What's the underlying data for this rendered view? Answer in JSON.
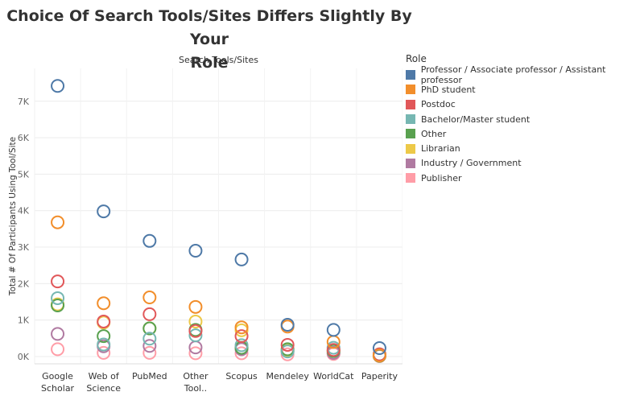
{
  "title_line1": "Choice Of Search Tools/Sites Differs Slightly By Your",
  "title_line2": "Role",
  "legend_title": "Role",
  "chart_data": {
    "type": "scatter",
    "title": "Choice Of Search Tools/Sites Differs Slightly By Your Role",
    "xlabel": "Search Tools/Sites",
    "ylabel": "Total # Of Participants Using Tool/Site",
    "ylim": [
      -200,
      7900
    ],
    "yticks": [
      0,
      1000,
      2000,
      3000,
      4000,
      5000,
      6000,
      7000
    ],
    "ytick_labels": [
      "0K",
      "1K",
      "2K",
      "3K",
      "4K",
      "5K",
      "6K",
      "7K"
    ],
    "categories": [
      "Google Scholar",
      "Web of Science",
      "PubMed",
      "Other Tool..",
      "Scopus",
      "Mendeley",
      "WorldCat",
      "Paperity"
    ],
    "category_lines": [
      [
        "Google",
        "Scholar"
      ],
      [
        "Web of",
        "Science"
      ],
      [
        "PubMed"
      ],
      [
        "Other",
        "Tool.."
      ],
      [
        "Scopus"
      ],
      [
        "Mendeley"
      ],
      [
        "WorldCat"
      ],
      [
        "Paperity"
      ]
    ],
    "grid": true,
    "marker": "open-circle",
    "legend_position": "right",
    "series": [
      {
        "name": "Professor / Associate professor / Assistant professor",
        "color": "#4e79a7",
        "values": [
          7420,
          3980,
          3170,
          2900,
          2660,
          870,
          730,
          230
        ]
      },
      {
        "name": "PhD student",
        "color": "#f28e2b",
        "values": [
          3680,
          1460,
          1620,
          1360,
          800,
          820,
          400,
          30
        ]
      },
      {
        "name": "Postdoc",
        "color": "#e15759",
        "values": [
          2060,
          960,
          1160,
          700,
          560,
          320,
          180,
          60
        ]
      },
      {
        "name": "Bachelor/Master student",
        "color": "#76b7b2",
        "values": [
          1600,
          330,
          490,
          580,
          310,
          140,
          240,
          60
        ]
      },
      {
        "name": "Other",
        "color": "#59a14f",
        "values": [
          1400,
          560,
          770,
          730,
          240,
          200,
          150,
          20
        ]
      },
      {
        "name": "Librarian",
        "color": "#edc948",
        "values": [
          1430,
          930,
          770,
          960,
          720,
          160,
          160,
          20
        ]
      },
      {
        "name": "Industry / Government",
        "color": "#b07aa1",
        "values": [
          620,
          280,
          290,
          250,
          200,
          150,
          100,
          20
        ]
      },
      {
        "name": "Publisher",
        "color": "#ff9da7",
        "values": [
          200,
          100,
          100,
          90,
          90,
          60,
          70,
          10
        ]
      }
    ]
  }
}
